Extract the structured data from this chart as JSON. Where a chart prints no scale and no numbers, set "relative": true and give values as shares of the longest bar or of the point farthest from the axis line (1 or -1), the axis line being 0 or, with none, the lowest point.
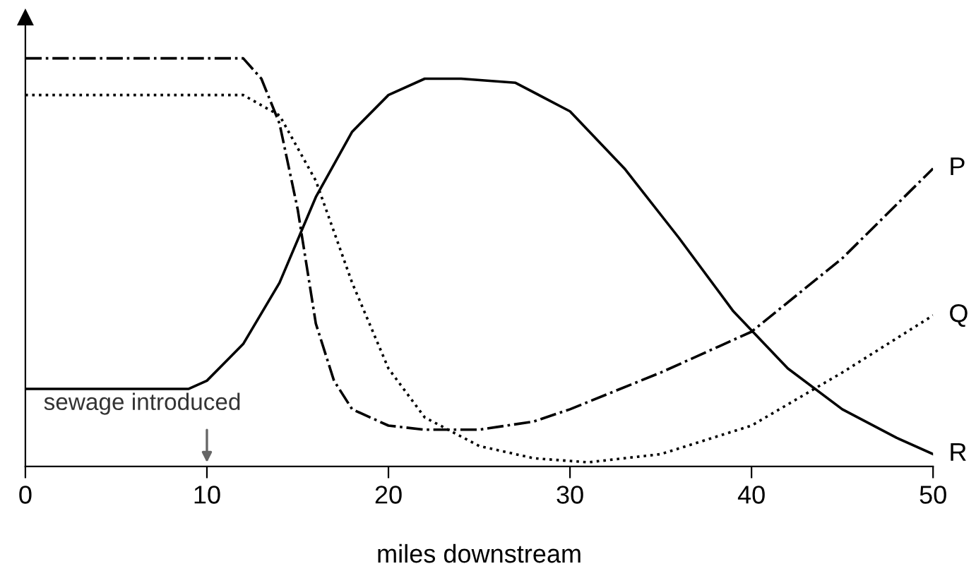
{
  "chart_data": {
    "type": "line",
    "xlabel": "miles downstream",
    "relative": true,
    "xlim": [
      0,
      50
    ],
    "xticks": [
      0,
      10,
      20,
      30,
      40,
      50
    ],
    "grid": false,
    "marker": "none",
    "annotations": [
      "sewage introduced"
    ],
    "series": [
      {
        "name": "P",
        "color": "#000000",
        "line_style": "dashdot",
        "x": [
          0,
          12,
          13,
          14,
          15,
          16,
          17,
          18,
          20,
          22,
          25,
          28,
          30,
          35,
          40,
          45,
          50
        ],
        "values": [
          1,
          1,
          0.95,
          0.84,
          0.63,
          0.35,
          0.21,
          0.14,
          0.1,
          0.09,
          0.09,
          0.11,
          0.14,
          0.23,
          0.33,
          0.51,
          0.73
        ]
      },
      {
        "name": "Q",
        "color": "#000000",
        "line_style": "dotted",
        "x": [
          0,
          12,
          14,
          16,
          18,
          20,
          22,
          25,
          28,
          31,
          35,
          40,
          45,
          50
        ],
        "values": [
          0.91,
          0.91,
          0.86,
          0.7,
          0.45,
          0.24,
          0.12,
          0.05,
          0.02,
          0.01,
          0.03,
          0.1,
          0.23,
          0.37
        ]
      },
      {
        "name": "R",
        "color": "#000000",
        "line_style": "solid",
        "x": [
          0,
          9,
          10,
          12,
          14,
          16,
          18,
          20,
          22,
          24,
          27,
          30,
          33,
          36,
          39,
          42,
          45,
          48,
          50
        ],
        "values": [
          0.19,
          0.19,
          0.21,
          0.3,
          0.45,
          0.66,
          0.82,
          0.91,
          0.95,
          0.95,
          0.94,
          0.87,
          0.73,
          0.56,
          0.38,
          0.24,
          0.14,
          0.07,
          0.03
        ]
      }
    ]
  }
}
